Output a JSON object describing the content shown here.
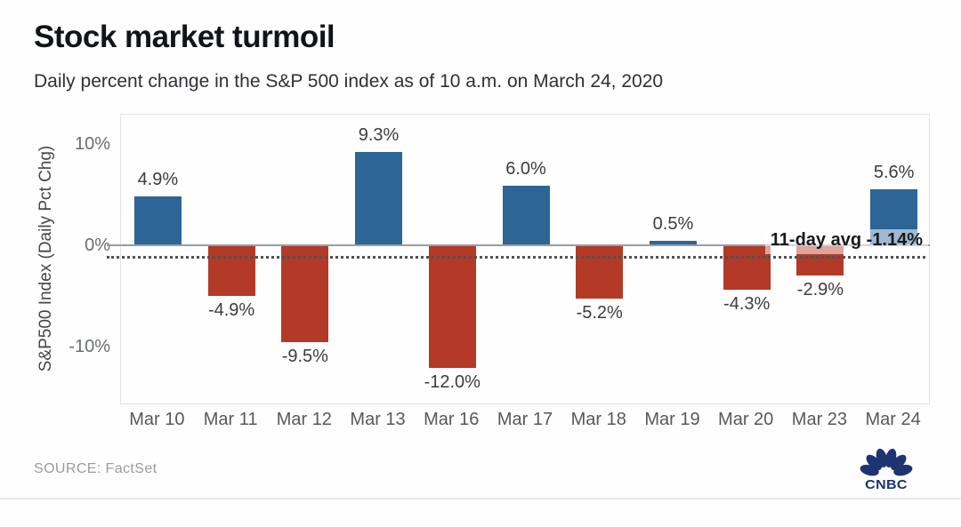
{
  "header": {
    "title": "Stock market turmoil",
    "subtitle": "Daily percent change in the S&P 500 index as of 10 a.m. on March 24, 2020"
  },
  "chart_data": {
    "type": "bar",
    "title": "Stock market turmoil",
    "subtitle": "Daily percent change in the S&P 500 index as of 10 a.m. on March 24, 2020",
    "categories": [
      "Mar 10",
      "Mar 11",
      "Mar 12",
      "Mar 13",
      "Mar 16",
      "Mar 17",
      "Mar 18",
      "Mar 19",
      "Mar 20",
      "Mar 23",
      "Mar 24"
    ],
    "values": [
      4.9,
      -4.9,
      -9.5,
      9.3,
      -12.0,
      6.0,
      -5.2,
      0.5,
      -4.3,
      -2.9,
      5.6
    ],
    "bar_labels": [
      "4.9%",
      "-4.9%",
      "-9.5%",
      "9.3%",
      "-12.0%",
      "6.0%",
      "-5.2%",
      "0.5%",
      "-4.3%",
      "-2.9%",
      "5.6%"
    ],
    "xlabel": "",
    "ylabel": "S&P500 Index (Daily Pct Chg)",
    "yticks": [
      {
        "label": "10%",
        "value": 10
      },
      {
        "label": "0%",
        "value": 0
      },
      {
        "label": "-10%",
        "value": -10
      }
    ],
    "ylim": [
      -15.7,
      13.0
    ],
    "grid": false,
    "legend": false,
    "average_line": {
      "label": "11-day avg -1.14%",
      "value": -1.14
    },
    "colors": {
      "positive": "#2d6596",
      "negative": "#b23a27"
    }
  },
  "footer": {
    "source": "SOURCE: FactSet",
    "logo_text": "CNBC",
    "logo_color": "#1e3472"
  }
}
